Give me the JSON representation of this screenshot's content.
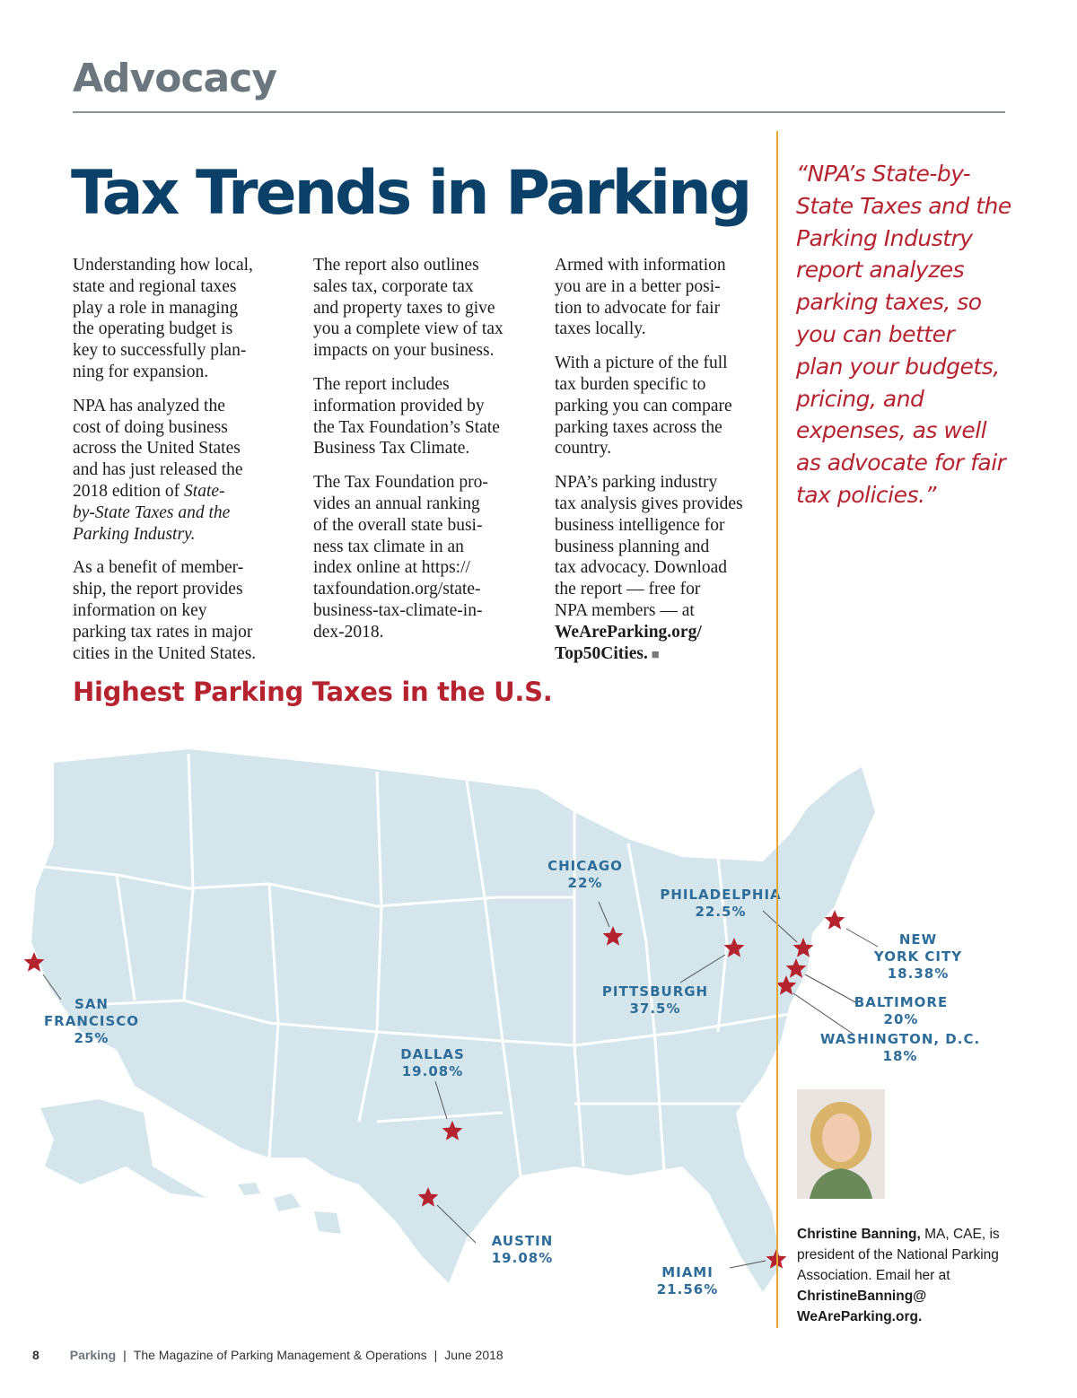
{
  "header": {
    "section": "Advocacy",
    "title": "Tax Trends in Parking"
  },
  "body": {
    "columns": [
      {
        "paragraphs": [
          {
            "lines": [
              "Understanding how local,",
              "state and regional taxes",
              "play a role in managing",
              "the operating budget is",
              "key to successfully plan-",
              "ning for expansion."
            ]
          },
          {
            "lines": [
              "NPA has analyzed the",
              "cost of doing business",
              "across the United States",
              "and has just released the",
              [
                {
                  "text": "2018 edition of "
                },
                {
                  "text": "State-",
                  "style": "italic"
                }
              ],
              [
                {
                  "text": "by-State Taxes and the",
                  "style": "italic"
                }
              ],
              [
                {
                  "text": "Parking Industry.",
                  "style": "italic"
                }
              ]
            ]
          },
          {
            "lines": [
              "As a benefit of member-",
              "ship, the report provides",
              "information on key",
              "parking tax rates in major",
              "cities in the United States."
            ]
          }
        ]
      },
      {
        "paragraphs": [
          {
            "lines": [
              "The report also outlines",
              "sales tax, corporate tax",
              "and property taxes to give",
              "you a complete view of tax",
              "impacts on your business."
            ]
          },
          {
            "lines": [
              "The report includes",
              "information provided by",
              "the Tax Foundation’s State",
              "Business Tax Climate."
            ]
          },
          {
            "lines": [
              "The Tax Foundation pro-",
              "vides an annual ranking",
              "of the overall state busi-",
              "ness tax climate in an",
              "index online at https://",
              "taxfoundation.org/state-",
              "business-tax-climate-in-",
              "dex-2018."
            ]
          }
        ]
      },
      {
        "paragraphs": [
          {
            "lines": [
              "Armed with information",
              "you are in a better posi-",
              "tion to advocate for fair",
              "taxes locally."
            ]
          },
          {
            "lines": [
              "With a picture of the full",
              "tax burden specific to",
              "parking you can compare",
              "parking taxes across the",
              "country."
            ]
          },
          {
            "lines": [
              "NPA’s parking industry",
              "tax analysis gives provides",
              "business intelligence for",
              "business planning and",
              "tax advocacy. Download",
              "the report — free for",
              "NPA members — at",
              [
                {
                  "text": "WeAreParking.org/",
                  "style": "bold"
                }
              ],
              [
                {
                  "text": "Top50Cities.",
                  "style": "bold"
                },
                {
                  "text": " ■",
                  "style": "end-mark"
                }
              ]
            ]
          }
        ]
      }
    ]
  },
  "quote": {
    "lines": [
      "“NPA’s State-by-",
      "State Taxes and the",
      "Parking Industry",
      "report analyzes",
      "parking taxes, so",
      "you can better",
      "plan your budgets,",
      "pricing, and",
      "expenses, as well",
      "as advocate for fair",
      "tax policies.”"
    ]
  },
  "map": {
    "title": "Highest Parking Taxes in the U.S.",
    "cities": [
      {
        "name_lines": [
          "SAN",
          "FRANCISCO"
        ],
        "rate": "25%"
      },
      {
        "name_lines": [
          "CHICAGO"
        ],
        "rate": "22%"
      },
      {
        "name_lines": [
          "PHILADELPHIA"
        ],
        "rate": "22.5%"
      },
      {
        "name_lines": [
          "NEW",
          "YORK CITY"
        ],
        "rate": "18.38%"
      },
      {
        "name_lines": [
          "PITTSBURGH"
        ],
        "rate": "37.5%"
      },
      {
        "name_lines": [
          "BALTIMORE"
        ],
        "rate": "20%"
      },
      {
        "name_lines": [
          "WASHINGTON, D.C."
        ],
        "rate": "18%"
      },
      {
        "name_lines": [
          "DALLAS"
        ],
        "rate": "19.08%"
      },
      {
        "name_lines": [
          "AUSTIN"
        ],
        "rate": "19.08%"
      },
      {
        "name_lines": [
          "MIAMI"
        ],
        "rate": "21.56%"
      }
    ]
  },
  "bio": {
    "lines": [
      [
        {
          "text": "Christine Banning,",
          "style": "bold"
        },
        {
          "text": " MA, CAE, is"
        }
      ],
      "president of the National Parking",
      "Association. Email her at",
      [
        {
          "text": "ChristineBanning@",
          "style": "bold"
        }
      ],
      [
        {
          "text": "WeAreParking.org.",
          "style": "bold"
        }
      ]
    ]
  },
  "footer": {
    "page": "8",
    "magazine": "Parking",
    "separator": "|",
    "subtitle": "The Magazine of Parking Management & Operations",
    "date": "June 2018"
  }
}
